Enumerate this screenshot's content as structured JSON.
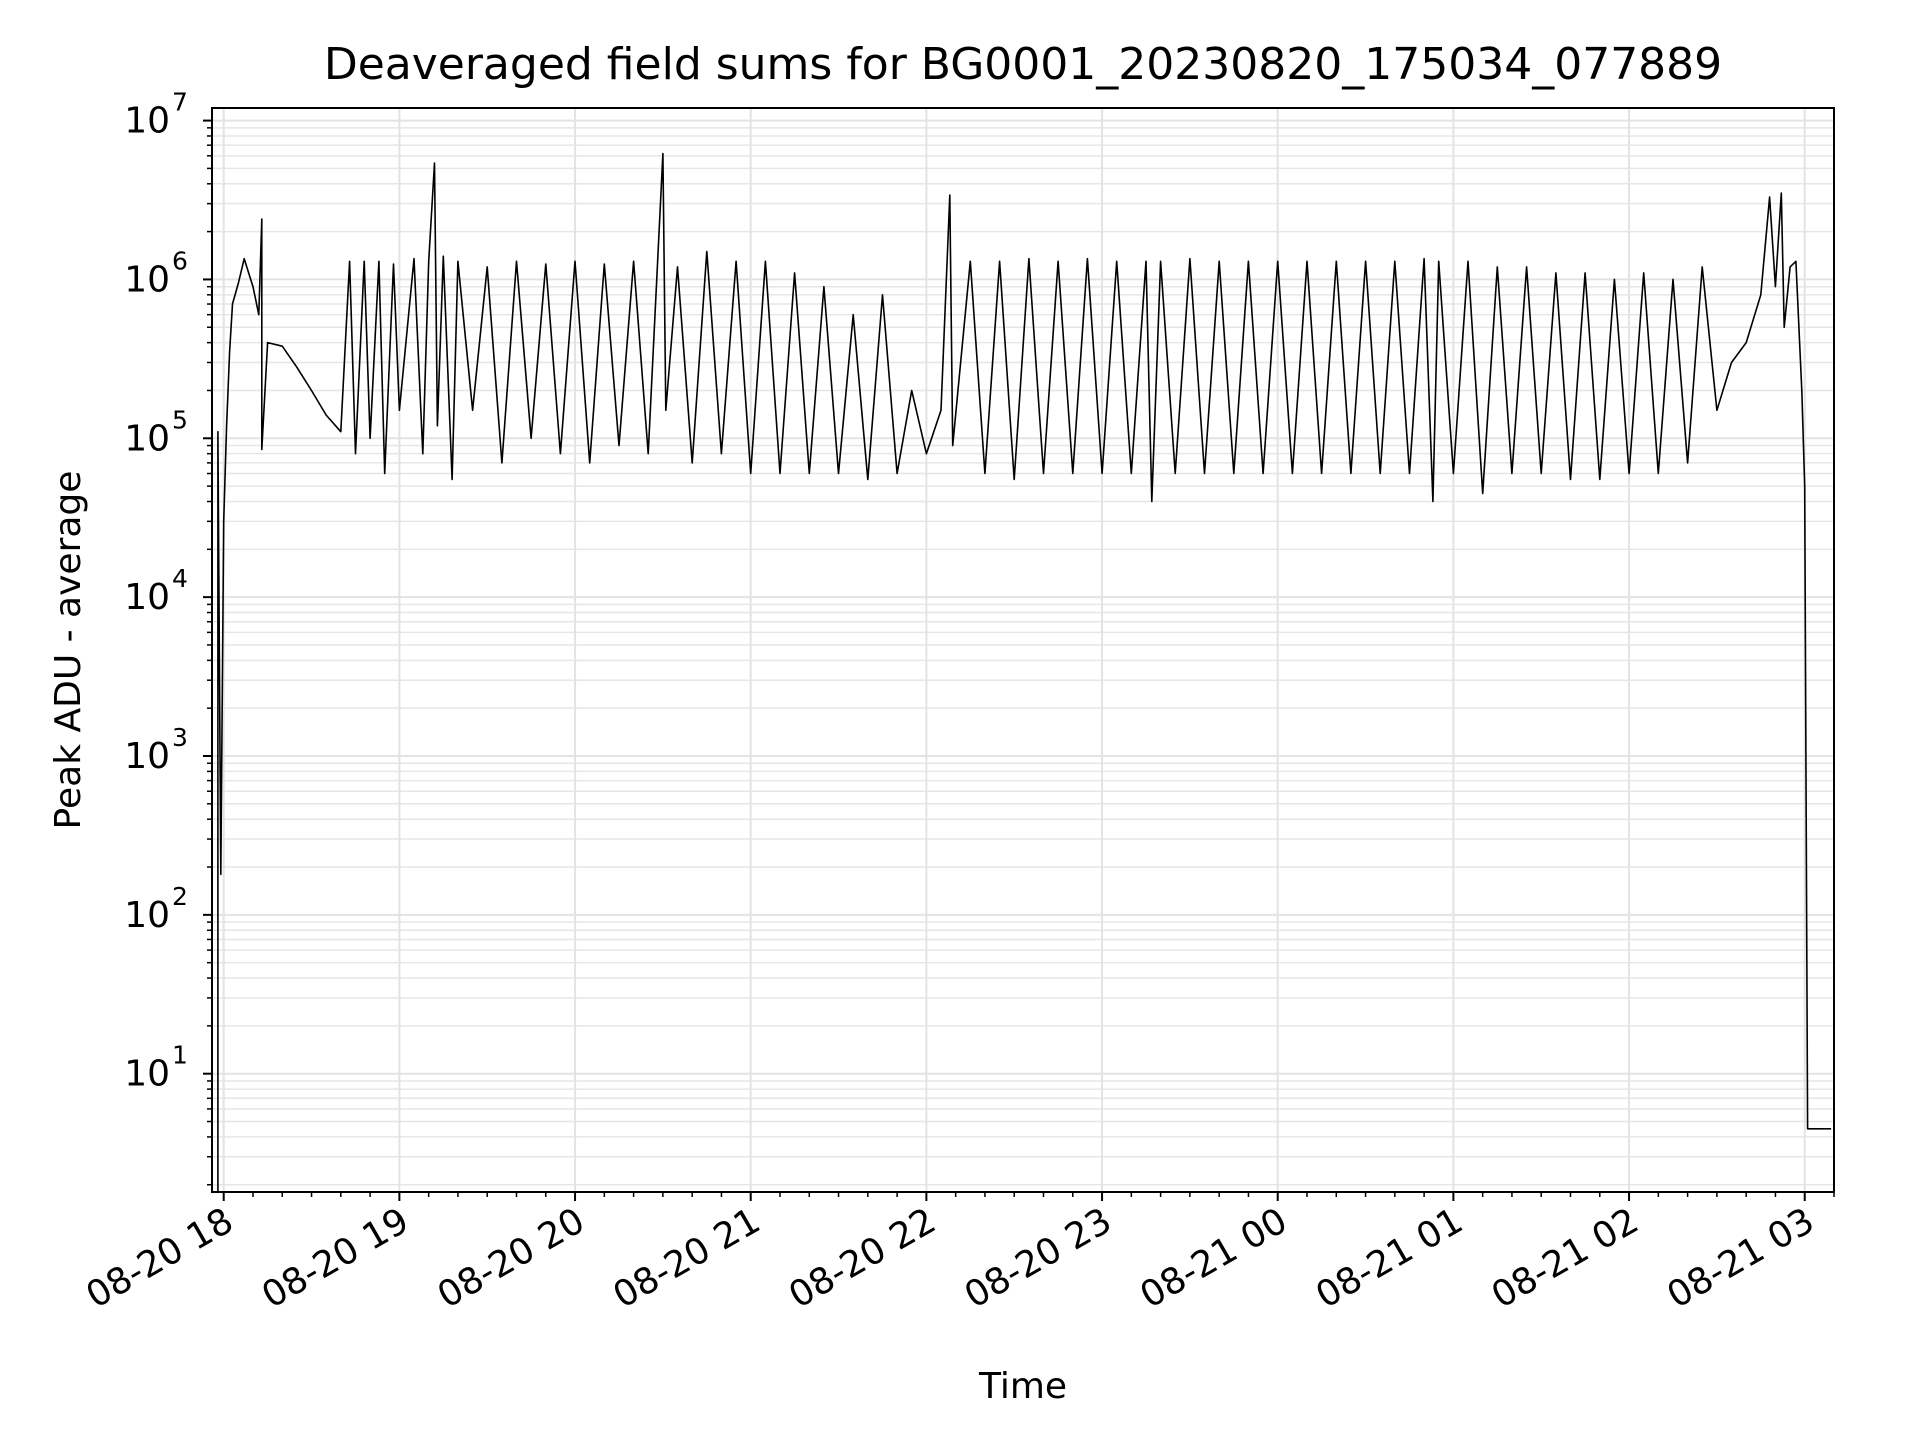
{
  "chart_data": {
    "type": "line",
    "title": "Deaveraged field sums for BG0001_20230820_175034_077889",
    "xlabel": "Time",
    "ylabel": "Peak ADU - average",
    "x_tick_labels": [
      "08-20 18",
      "08-20 19",
      "08-20 20",
      "08-20 21",
      "08-20 22",
      "08-20 23",
      "08-21 00",
      "08-21 01",
      "08-21 02",
      "08-21 03"
    ],
    "x_ticks": [
      "2023-08-20 18:00",
      "2023-08-20 19:00",
      "2023-08-20 20:00",
      "2023-08-20 21:00",
      "2023-08-20 22:00",
      "2023-08-20 23:00",
      "2023-08-21 00:00",
      "2023-08-21 01:00",
      "2023-08-21 02:00",
      "2023-08-21 03:00"
    ],
    "xlim": [
      "2023-08-20 17:56",
      "2023-08-21 03:10"
    ],
    "y_scale": "log",
    "ylim": [
      1.8,
      12000000
    ],
    "y_ticks": [
      {
        "base": "10",
        "exp": "1",
        "value": 10
      },
      {
        "base": "10",
        "exp": "2",
        "value": 100
      },
      {
        "base": "10",
        "exp": "3",
        "value": 1000
      },
      {
        "base": "10",
        "exp": "4",
        "value": 10000
      },
      {
        "base": "10",
        "exp": "5",
        "value": 100000
      },
      {
        "base": "10",
        "exp": "6",
        "value": 1000000
      },
      {
        "base": "10",
        "exp": "7",
        "value": 10000000
      }
    ],
    "grid": "major and minor",
    "series": [
      {
        "color": "#000000",
        "points": [
          [
            "2023-08-20 17:58",
            1.8
          ],
          [
            "2023-08-20 17:58",
            110000
          ],
          [
            "2023-08-20 17:59",
            180
          ],
          [
            "2023-08-20 18:00",
            30000
          ],
          [
            "2023-08-20 18:01",
            120000
          ],
          [
            "2023-08-20 18:02",
            350000
          ],
          [
            "2023-08-20 18:03",
            700000
          ],
          [
            "2023-08-20 18:05",
            950000
          ],
          [
            "2023-08-20 18:07",
            1350000
          ],
          [
            "2023-08-20 18:10",
            900000
          ],
          [
            "2023-08-20 18:12",
            600000
          ],
          [
            "2023-08-20 18:13",
            2400000
          ],
          [
            "2023-08-20 18:13",
            85000
          ],
          [
            "2023-08-20 18:15",
            400000
          ],
          [
            "2023-08-20 18:20",
            380000
          ],
          [
            "2023-08-20 18:25",
            280000
          ],
          [
            "2023-08-20 18:30",
            200000
          ],
          [
            "2023-08-20 18:35",
            140000
          ],
          [
            "2023-08-20 18:40",
            110000
          ],
          [
            "2023-08-20 18:43",
            1300000
          ],
          [
            "2023-08-20 18:45",
            80000
          ],
          [
            "2023-08-20 18:48",
            1300000
          ],
          [
            "2023-08-20 18:50",
            100000
          ],
          [
            "2023-08-20 18:53",
            1300000
          ],
          [
            "2023-08-20 18:55",
            60000
          ],
          [
            "2023-08-20 18:58",
            1250000
          ],
          [
            "2023-08-20 19:00",
            150000
          ],
          [
            "2023-08-20 19:05",
            1350000
          ],
          [
            "2023-08-20 19:08",
            80000
          ],
          [
            "2023-08-20 19:10",
            1300000
          ],
          [
            "2023-08-20 19:12",
            5400000
          ],
          [
            "2023-08-20 19:13",
            120000
          ],
          [
            "2023-08-20 19:15",
            1400000
          ],
          [
            "2023-08-20 19:18",
            55000
          ],
          [
            "2023-08-20 19:20",
            1300000
          ],
          [
            "2023-08-20 19:25",
            150000
          ],
          [
            "2023-08-20 19:30",
            1200000
          ],
          [
            "2023-08-20 19:35",
            70000
          ],
          [
            "2023-08-20 19:40",
            1300000
          ],
          [
            "2023-08-20 19:45",
            100000
          ],
          [
            "2023-08-20 19:50",
            1250000
          ],
          [
            "2023-08-20 19:55",
            80000
          ],
          [
            "2023-08-20 20:00",
            1300000
          ],
          [
            "2023-08-20 20:05",
            70000
          ],
          [
            "2023-08-20 20:10",
            1250000
          ],
          [
            "2023-08-20 20:15",
            90000
          ],
          [
            "2023-08-20 20:20",
            1300000
          ],
          [
            "2023-08-20 20:25",
            80000
          ],
          [
            "2023-08-20 20:30",
            6200000
          ],
          [
            "2023-08-20 20:31",
            150000
          ],
          [
            "2023-08-20 20:35",
            1200000
          ],
          [
            "2023-08-20 20:40",
            70000
          ],
          [
            "2023-08-20 20:45",
            1500000
          ],
          [
            "2023-08-20 20:50",
            80000
          ],
          [
            "2023-08-20 20:55",
            1300000
          ],
          [
            "2023-08-20 21:00",
            60000
          ],
          [
            "2023-08-20 21:05",
            1300000
          ],
          [
            "2023-08-20 21:10",
            60000
          ],
          [
            "2023-08-20 21:15",
            1100000
          ],
          [
            "2023-08-20 21:20",
            60000
          ],
          [
            "2023-08-20 21:25",
            900000
          ],
          [
            "2023-08-20 21:30",
            60000
          ],
          [
            "2023-08-20 21:35",
            600000
          ],
          [
            "2023-08-20 21:40",
            55000
          ],
          [
            "2023-08-20 21:45",
            800000
          ],
          [
            "2023-08-20 21:50",
            60000
          ],
          [
            "2023-08-20 21:55",
            200000
          ],
          [
            "2023-08-20 22:00",
            80000
          ],
          [
            "2023-08-20 22:05",
            150000
          ],
          [
            "2023-08-20 22:08",
            3400000
          ],
          [
            "2023-08-20 22:09",
            90000
          ],
          [
            "2023-08-20 22:15",
            1300000
          ],
          [
            "2023-08-20 22:20",
            60000
          ],
          [
            "2023-08-20 22:25",
            1300000
          ],
          [
            "2023-08-20 22:30",
            55000
          ],
          [
            "2023-08-20 22:35",
            1350000
          ],
          [
            "2023-08-20 22:40",
            60000
          ],
          [
            "2023-08-20 22:45",
            1300000
          ],
          [
            "2023-08-20 22:50",
            60000
          ],
          [
            "2023-08-20 22:55",
            1350000
          ],
          [
            "2023-08-20 23:00",
            60000
          ],
          [
            "2023-08-20 23:05",
            1300000
          ],
          [
            "2023-08-20 23:10",
            60000
          ],
          [
            "2023-08-20 23:15",
            1300000
          ],
          [
            "2023-08-20 23:17",
            40000
          ],
          [
            "2023-08-20 23:20",
            1300000
          ],
          [
            "2023-08-20 23:25",
            60000
          ],
          [
            "2023-08-20 23:30",
            1350000
          ],
          [
            "2023-08-20 23:35",
            60000
          ],
          [
            "2023-08-20 23:40",
            1300000
          ],
          [
            "2023-08-20 23:45",
            60000
          ],
          [
            "2023-08-20 23:50",
            1300000
          ],
          [
            "2023-08-20 23:55",
            60000
          ],
          [
            "2023-08-21 00:00",
            1300000
          ],
          [
            "2023-08-21 00:05",
            60000
          ],
          [
            "2023-08-21 00:10",
            1300000
          ],
          [
            "2023-08-21 00:15",
            60000
          ],
          [
            "2023-08-21 00:20",
            1300000
          ],
          [
            "2023-08-21 00:25",
            60000
          ],
          [
            "2023-08-21 00:30",
            1300000
          ],
          [
            "2023-08-21 00:35",
            60000
          ],
          [
            "2023-08-21 00:40",
            1300000
          ],
          [
            "2023-08-21 00:45",
            60000
          ],
          [
            "2023-08-21 00:50",
            1350000
          ],
          [
            "2023-08-21 00:53",
            40000
          ],
          [
            "2023-08-21 00:55",
            1300000
          ],
          [
            "2023-08-21 01:00",
            60000
          ],
          [
            "2023-08-21 01:05",
            1300000
          ],
          [
            "2023-08-21 01:10",
            45000
          ],
          [
            "2023-08-21 01:15",
            1200000
          ],
          [
            "2023-08-21 01:20",
            60000
          ],
          [
            "2023-08-21 01:25",
            1200000
          ],
          [
            "2023-08-21 01:30",
            60000
          ],
          [
            "2023-08-21 01:35",
            1100000
          ],
          [
            "2023-08-21 01:40",
            55000
          ],
          [
            "2023-08-21 01:45",
            1100000
          ],
          [
            "2023-08-21 01:50",
            55000
          ],
          [
            "2023-08-21 01:55",
            1000000
          ],
          [
            "2023-08-21 02:00",
            60000
          ],
          [
            "2023-08-21 02:05",
            1100000
          ],
          [
            "2023-08-21 02:10",
            60000
          ],
          [
            "2023-08-21 02:15",
            1000000
          ],
          [
            "2023-08-21 02:20",
            70000
          ],
          [
            "2023-08-21 02:25",
            1200000
          ],
          [
            "2023-08-21 02:30",
            150000
          ],
          [
            "2023-08-21 02:35",
            300000
          ],
          [
            "2023-08-21 02:40",
            400000
          ],
          [
            "2023-08-21 02:45",
            800000
          ],
          [
            "2023-08-21 02:48",
            3300000
          ],
          [
            "2023-08-21 02:50",
            900000
          ],
          [
            "2023-08-21 02:52",
            3500000
          ],
          [
            "2023-08-21 02:53",
            500000
          ],
          [
            "2023-08-21 02:55",
            1200000
          ],
          [
            "2023-08-21 02:57",
            1300000
          ],
          [
            "2023-08-21 02:59",
            200000
          ],
          [
            "2023-08-21 03:00",
            50000
          ],
          [
            "2023-08-21 03:01",
            4.5
          ],
          [
            "2023-08-21 03:04",
            4.5
          ],
          [
            "2023-08-21 03:06",
            4.5
          ],
          [
            "2023-08-21 03:09",
            4.5
          ]
        ]
      }
    ]
  }
}
